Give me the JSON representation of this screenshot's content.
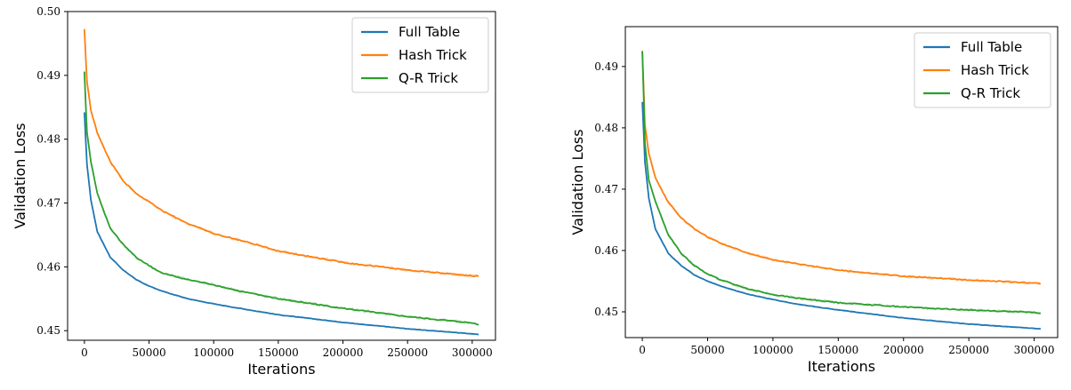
{
  "chart_data": [
    {
      "type": "line",
      "xlabel": "Iterations",
      "ylabel": "Validation Loss",
      "xlim": [
        -13000,
        318000
      ],
      "ylim": [
        0.4485,
        0.5
      ],
      "xticks": [
        0,
        50000,
        100000,
        150000,
        200000,
        250000,
        300000
      ],
      "yticks": [
        0.45,
        0.46,
        0.47,
        0.48,
        0.49,
        0.5
      ],
      "ytick_labels": [
        "0.45",
        "0.46",
        "0.47",
        "0.48",
        "0.49",
        "0.50"
      ],
      "legend_position": "top-right",
      "grid": false,
      "series": [
        {
          "name": "Full Table",
          "color": "#1f77b4",
          "x": [
            0,
            2000,
            5000,
            10000,
            20000,
            30000,
            40000,
            50000,
            60000,
            80000,
            100000,
            120000,
            150000,
            200000,
            250000,
            300000,
            305000
          ],
          "y": [
            0.4842,
            0.476,
            0.4705,
            0.4655,
            0.4615,
            0.4595,
            0.458,
            0.457,
            0.4562,
            0.455,
            0.4542,
            0.4535,
            0.4525,
            0.4513,
            0.4503,
            0.4495,
            0.4494
          ]
        },
        {
          "name": "Hash Trick",
          "color": "#ff7f0e",
          "x": [
            0,
            2000,
            5000,
            10000,
            20000,
            30000,
            40000,
            50000,
            60000,
            80000,
            100000,
            120000,
            150000,
            200000,
            250000,
            300000,
            305000
          ],
          "y": [
            0.4972,
            0.489,
            0.4845,
            0.481,
            0.4765,
            0.4735,
            0.4715,
            0.4702,
            0.4688,
            0.4668,
            0.4652,
            0.4642,
            0.4625,
            0.4607,
            0.4595,
            0.4586,
            0.4585
          ]
        },
        {
          "name": "Q-R Trick",
          "color": "#2ca02c",
          "x": [
            0,
            2000,
            5000,
            10000,
            20000,
            30000,
            40000,
            50000,
            60000,
            80000,
            100000,
            120000,
            150000,
            200000,
            250000,
            300000,
            305000
          ],
          "y": [
            0.4905,
            0.481,
            0.4765,
            0.4715,
            0.466,
            0.4635,
            0.4615,
            0.4602,
            0.459,
            0.458,
            0.4572,
            0.4562,
            0.455,
            0.4535,
            0.4522,
            0.4512,
            0.451
          ]
        }
      ]
    },
    {
      "type": "line",
      "xlabel": "Iterations",
      "ylabel": "Validation Loss",
      "xlim": [
        -13000,
        318000
      ],
      "ylim": [
        0.4458,
        0.4965
      ],
      "xticks": [
        0,
        50000,
        100000,
        150000,
        200000,
        250000,
        300000
      ],
      "yticks": [
        0.45,
        0.46,
        0.47,
        0.48,
        0.49
      ],
      "ytick_labels": [
        "0.45",
        "0.46",
        "0.47",
        "0.48",
        "0.49"
      ],
      "legend_position": "top-right",
      "grid": false,
      "series": [
        {
          "name": "Full Table",
          "color": "#1f77b4",
          "x": [
            0,
            2000,
            5000,
            10000,
            20000,
            30000,
            40000,
            50000,
            60000,
            80000,
            100000,
            120000,
            150000,
            200000,
            250000,
            300000,
            305000
          ],
          "y": [
            0.4842,
            0.4745,
            0.4685,
            0.4635,
            0.4595,
            0.4575,
            0.456,
            0.455,
            0.4542,
            0.4529,
            0.452,
            0.4512,
            0.4503,
            0.449,
            0.448,
            0.4473,
            0.4472
          ]
        },
        {
          "name": "Hash Trick",
          "color": "#ff7f0e",
          "x": [
            0,
            2000,
            5000,
            10000,
            20000,
            30000,
            40000,
            50000,
            60000,
            80000,
            100000,
            120000,
            150000,
            200000,
            250000,
            300000,
            305000
          ],
          "y": [
            0.4925,
            0.4805,
            0.4758,
            0.4718,
            0.4678,
            0.4653,
            0.4635,
            0.4622,
            0.4612,
            0.4596,
            0.4585,
            0.4578,
            0.4568,
            0.4558,
            0.4552,
            0.4547,
            0.4546
          ]
        },
        {
          "name": "Q-R Trick",
          "color": "#2ca02c",
          "x": [
            0,
            2000,
            5000,
            10000,
            20000,
            30000,
            40000,
            50000,
            60000,
            80000,
            100000,
            120000,
            150000,
            200000,
            250000,
            300000,
            305000
          ],
          "y": [
            0.4925,
            0.4775,
            0.4715,
            0.468,
            0.4625,
            0.4595,
            0.4575,
            0.4562,
            0.4552,
            0.4538,
            0.4528,
            0.4522,
            0.4515,
            0.4508,
            0.4503,
            0.4499,
            0.4498
          ]
        }
      ]
    }
  ]
}
